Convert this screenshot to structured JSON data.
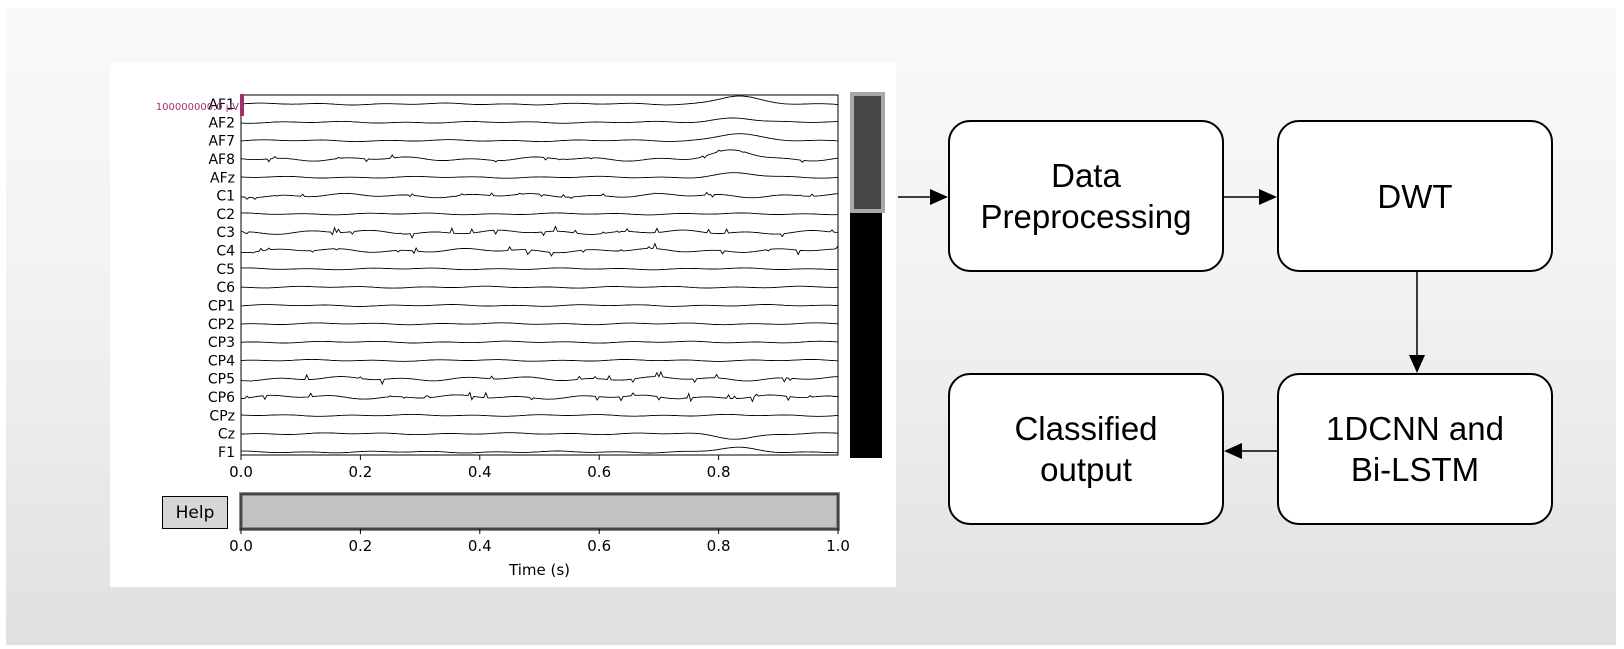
{
  "eeg": {
    "channels": [
      "AF1",
      "AF2",
      "AF7",
      "AF8",
      "AFz",
      "C1",
      "C2",
      "C3",
      "C4",
      "C5",
      "C6",
      "CP1",
      "CP2",
      "CP3",
      "CP4",
      "CP5",
      "CP6",
      "CPz",
      "Cz",
      "F1"
    ],
    "scale_label": "100000000.0 µV",
    "help_label": "Help",
    "top_axis_ticks": [
      "0.0",
      "0.2",
      "0.4",
      "0.6",
      "0.8"
    ],
    "bottom_axis_ticks": [
      "0.0",
      "0.2",
      "0.4",
      "0.6",
      "0.8",
      "1.0"
    ],
    "xlabel": "Time (s)",
    "scale_color": "#a0306e"
  },
  "flow": {
    "preprocessing": "Data\nPreprocessing",
    "dwt": "DWT",
    "cnn_lstm": "1DCNN and\nBi-LSTM",
    "output": "Classified\noutput"
  }
}
